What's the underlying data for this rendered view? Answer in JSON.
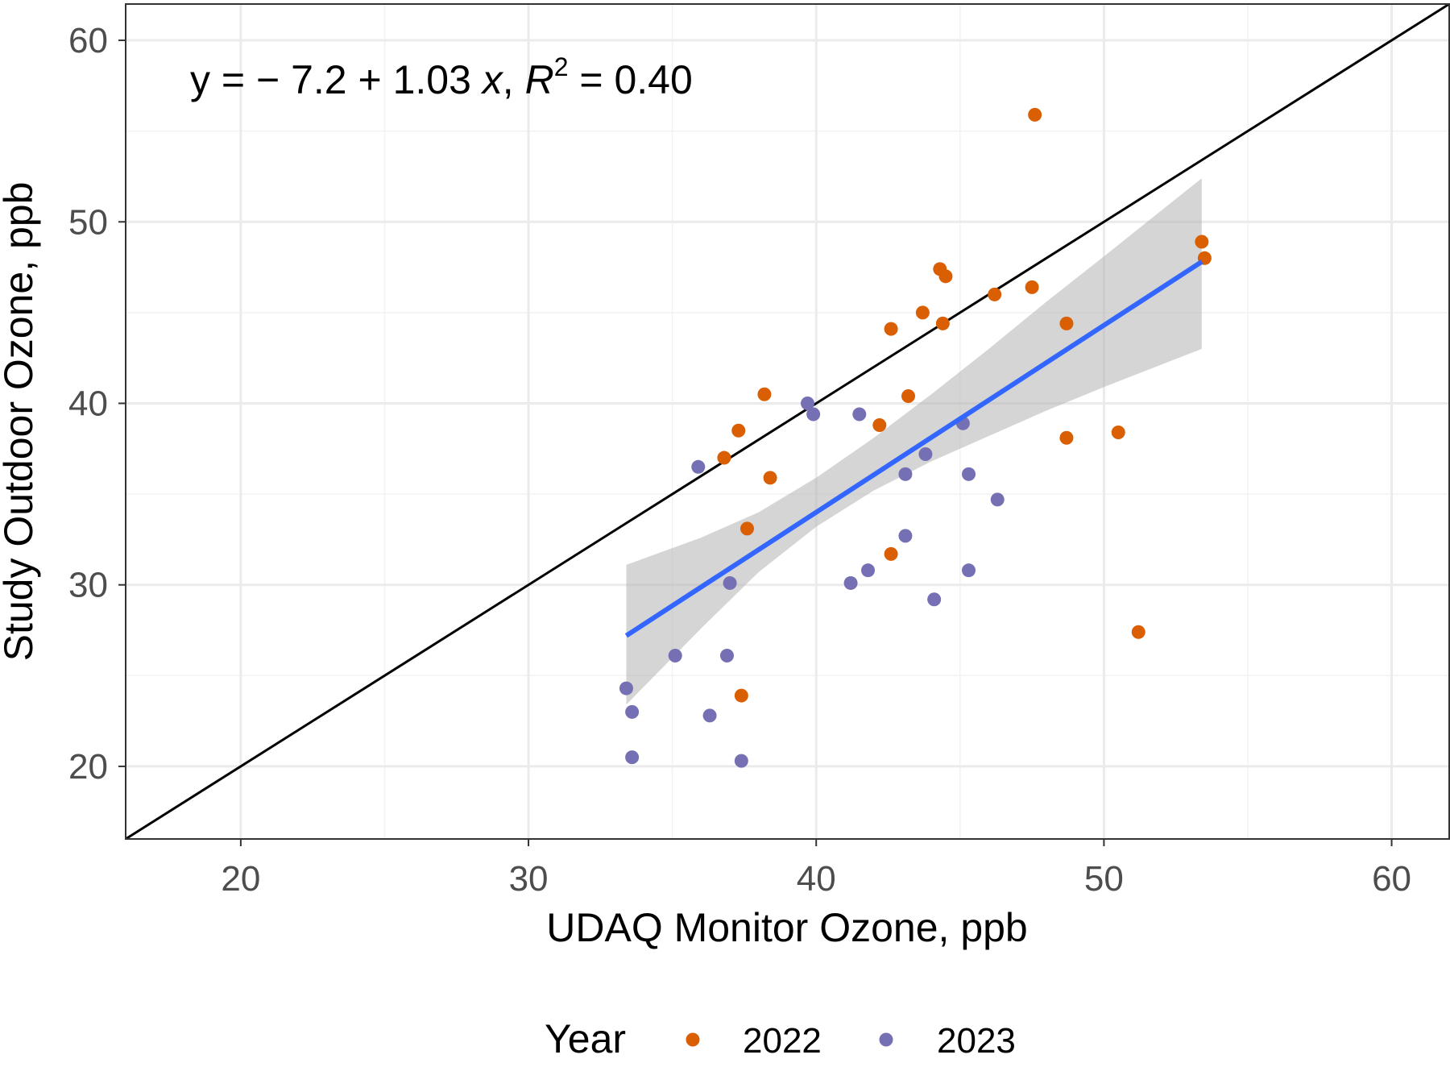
{
  "chart_data": {
    "type": "scatter",
    "xlabel": "UDAQ Monitor Ozone, ppb",
    "ylabel": "Study Outdoor Ozone, ppb",
    "xlim": [
      16,
      62
    ],
    "ylim": [
      16,
      62
    ],
    "x_ticks": [
      "20",
      "30",
      "40",
      "50",
      "60"
    ],
    "y_ticks": [
      "20",
      "30",
      "40",
      "50",
      "60"
    ],
    "grid": true,
    "legend_position": "bottom",
    "legend_title": "Year",
    "annotation": {
      "prefix": "y = − 7.2 + 1.03 ",
      "x_var": "x",
      "sep": ", ",
      "r_var": "R",
      "r_exp": "2",
      "suffix": " = 0.40"
    },
    "identity_line": {
      "slope": 1,
      "intercept": 0,
      "color": "#000000"
    },
    "fit_line": {
      "intercept": -7.2,
      "slope": 1.03,
      "x_range": [
        33.4,
        53.4
      ],
      "color": "#3366ff"
    },
    "confidence_band": {
      "color": "#b3b3b3",
      "x": [
        33.4,
        36,
        38,
        40,
        42,
        44,
        46,
        48,
        50,
        53.4
      ],
      "lower": [
        23.4,
        27.6,
        30.7,
        33.2,
        35.2,
        36.8,
        38.2,
        39.6,
        40.9,
        43.0
      ],
      "upper": [
        31.1,
        32.6,
        34.0,
        35.9,
        38.1,
        40.5,
        43.0,
        45.6,
        48.1,
        52.4
      ]
    },
    "series": [
      {
        "name": "2022",
        "color": "#d95f02",
        "points": [
          [
            47.6,
            55.9
          ],
          [
            53.4,
            48.9
          ],
          [
            53.5,
            48.0
          ],
          [
            44.3,
            47.4
          ],
          [
            44.5,
            47.0
          ],
          [
            47.5,
            46.4
          ],
          [
            46.2,
            46.0
          ],
          [
            43.7,
            45.0
          ],
          [
            44.4,
            44.4
          ],
          [
            42.6,
            44.1
          ],
          [
            48.7,
            44.4
          ],
          [
            38.2,
            40.5
          ],
          [
            43.2,
            40.4
          ],
          [
            42.2,
            38.8
          ],
          [
            37.3,
            38.5
          ],
          [
            50.5,
            38.4
          ],
          [
            48.7,
            38.1
          ],
          [
            36.8,
            37.0
          ],
          [
            38.4,
            35.9
          ],
          [
            37.6,
            33.1
          ],
          [
            42.6,
            31.7
          ],
          [
            51.2,
            27.4
          ],
          [
            37.4,
            23.9
          ]
        ]
      },
      {
        "name": "2023",
        "color": "#7570b3",
        "points": [
          [
            39.7,
            40.0
          ],
          [
            39.9,
            39.4
          ],
          [
            41.5,
            39.4
          ],
          [
            45.1,
            38.9
          ],
          [
            43.8,
            37.2
          ],
          [
            35.9,
            36.5
          ],
          [
            43.1,
            36.1
          ],
          [
            45.3,
            36.1
          ],
          [
            46.3,
            34.7
          ],
          [
            43.1,
            32.7
          ],
          [
            37.0,
            30.1
          ],
          [
            41.2,
            30.1
          ],
          [
            41.8,
            30.8
          ],
          [
            45.3,
            30.8
          ],
          [
            44.1,
            29.2
          ],
          [
            35.1,
            26.1
          ],
          [
            36.9,
            26.1
          ],
          [
            33.4,
            24.3
          ],
          [
            33.6,
            23.0
          ],
          [
            36.3,
            22.8
          ],
          [
            33.6,
            20.5
          ],
          [
            37.4,
            20.3
          ]
        ]
      }
    ]
  }
}
